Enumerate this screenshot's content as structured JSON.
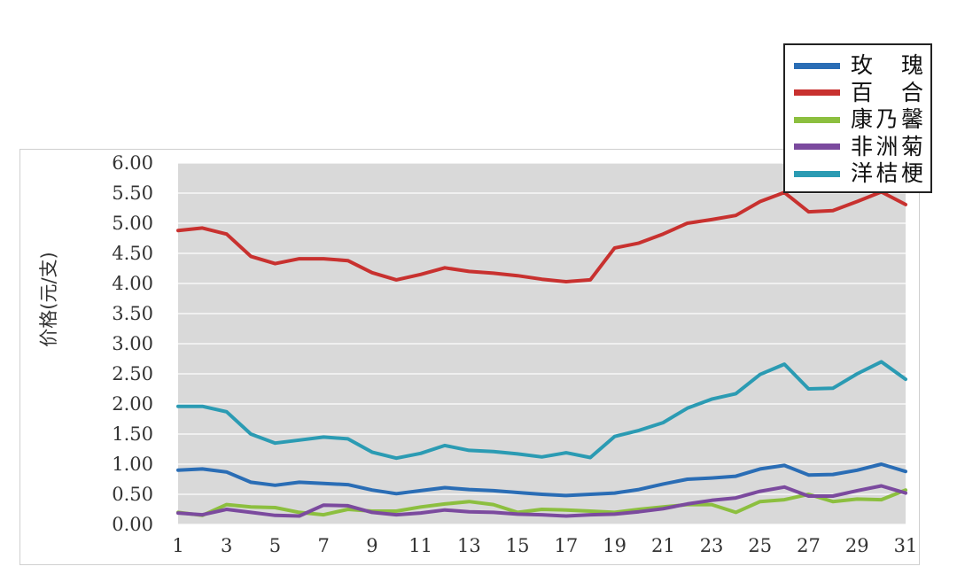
{
  "chart_data": {
    "type": "line",
    "title": "",
    "xlabel": "",
    "ylabel": "价格(元/支)",
    "x": [
      1,
      2,
      3,
      4,
      5,
      6,
      7,
      8,
      9,
      10,
      11,
      12,
      13,
      14,
      15,
      16,
      17,
      18,
      19,
      20,
      21,
      22,
      23,
      24,
      25,
      26,
      27,
      28,
      29,
      30,
      31
    ],
    "x_tick_labels": [
      "1",
      "3",
      "5",
      "7",
      "9",
      "11",
      "13",
      "15",
      "17",
      "19",
      "21",
      "23",
      "25",
      "27",
      "29",
      "31"
    ],
    "y_tick_labels": [
      "0.00",
      "0.50",
      "1.00",
      "1.50",
      "2.00",
      "2.50",
      "3.00",
      "3.50",
      "4.00",
      "4.50",
      "5.00",
      "5.50",
      "6.00"
    ],
    "ylim": [
      0,
      6
    ],
    "grid": "horizontal",
    "legend_position": "top-right",
    "series": [
      {
        "name": "玫　瑰",
        "color": "#2a6db5",
        "values": [
          0.9,
          0.92,
          0.87,
          0.7,
          0.65,
          0.7,
          0.68,
          0.66,
          0.57,
          0.51,
          0.56,
          0.61,
          0.58,
          0.56,
          0.53,
          0.5,
          0.48,
          0.5,
          0.52,
          0.58,
          0.67,
          0.75,
          0.77,
          0.8,
          0.92,
          0.98,
          0.82,
          0.83,
          0.9,
          1.0,
          0.88
        ]
      },
      {
        "name": "百　合",
        "color": "#c8312f",
        "values": [
          4.88,
          4.92,
          4.82,
          4.45,
          4.33,
          4.41,
          4.41,
          4.38,
          4.18,
          4.06,
          4.15,
          4.26,
          4.2,
          4.17,
          4.13,
          4.07,
          4.03,
          4.06,
          4.59,
          4.67,
          4.82,
          5.0,
          5.06,
          5.13,
          5.36,
          5.51,
          5.19,
          5.21,
          5.36,
          5.52,
          5.31
        ]
      },
      {
        "name": "康乃馨",
        "color": "#8cbf3f",
        "values": [
          0.2,
          0.15,
          0.33,
          0.29,
          0.28,
          0.2,
          0.16,
          0.25,
          0.22,
          0.22,
          0.29,
          0.34,
          0.38,
          0.33,
          0.2,
          0.25,
          0.24,
          0.22,
          0.2,
          0.25,
          0.29,
          0.33,
          0.33,
          0.2,
          0.38,
          0.41,
          0.5,
          0.38,
          0.42,
          0.41,
          0.57
        ]
      },
      {
        "name": "非洲菊",
        "color": "#7b4a9e",
        "values": [
          0.19,
          0.16,
          0.25,
          0.2,
          0.15,
          0.14,
          0.32,
          0.31,
          0.2,
          0.16,
          0.19,
          0.24,
          0.21,
          0.2,
          0.17,
          0.16,
          0.14,
          0.16,
          0.17,
          0.21,
          0.26,
          0.34,
          0.4,
          0.44,
          0.55,
          0.62,
          0.47,
          0.47,
          0.56,
          0.64,
          0.52
        ]
      },
      {
        "name": "洋桔梗",
        "color": "#2b9bb3",
        "values": [
          1.96,
          1.96,
          1.87,
          1.5,
          1.35,
          1.4,
          1.45,
          1.42,
          1.2,
          1.1,
          1.18,
          1.31,
          1.23,
          1.21,
          1.17,
          1.12,
          1.19,
          1.11,
          1.46,
          1.56,
          1.69,
          1.93,
          2.08,
          2.17,
          2.49,
          2.66,
          2.25,
          2.26,
          2.5,
          2.7,
          2.41
        ]
      }
    ]
  }
}
